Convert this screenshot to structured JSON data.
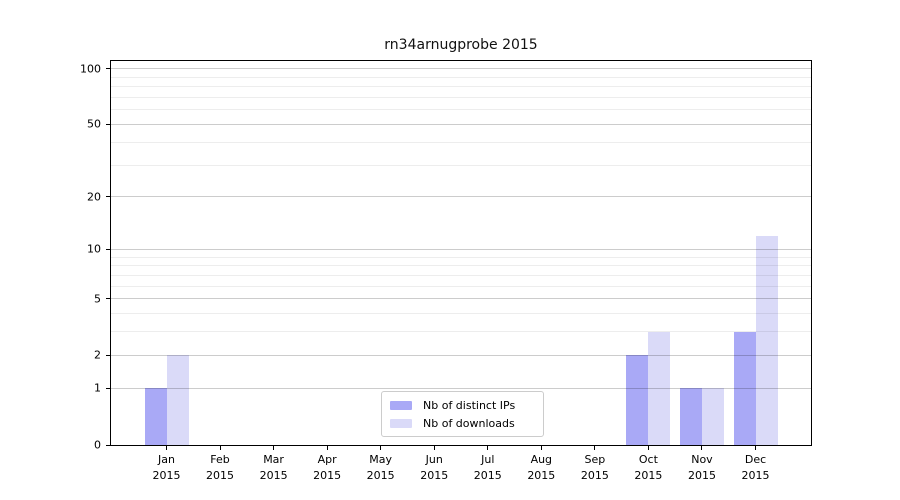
{
  "chart_data": {
    "type": "bar",
    "title": "rn34arnugprobe 2015",
    "categories": [
      "Jan",
      "Feb",
      "Mar",
      "Apr",
      "May",
      "Jun",
      "Jul",
      "Aug",
      "Sep",
      "Oct",
      "Nov",
      "Dec"
    ],
    "category_sublabel": "2015",
    "series": [
      {
        "name": "Nb of distinct IPs",
        "color": "#a9a9f6",
        "values": [
          1,
          0,
          0,
          0,
          0,
          0,
          0,
          0,
          0,
          2,
          1,
          3
        ]
      },
      {
        "name": "Nb of downloads",
        "color": "#dadaf8",
        "values": [
          2,
          0,
          0,
          0,
          0,
          0,
          0,
          0,
          0,
          3,
          1,
          12
        ]
      }
    ],
    "y_scale": "log10(1+y)",
    "y_ticks": [
      0,
      1,
      2,
      5,
      10,
      20,
      50,
      100
    ],
    "y_minor_gridlines": [
      3,
      4,
      6,
      7,
      8,
      9,
      30,
      40,
      60,
      70,
      80,
      90
    ],
    "ylim": [
      0,
      110
    ],
    "xlabel": "",
    "ylabel": "",
    "grid": true,
    "legend_position": "bottom-center"
  }
}
